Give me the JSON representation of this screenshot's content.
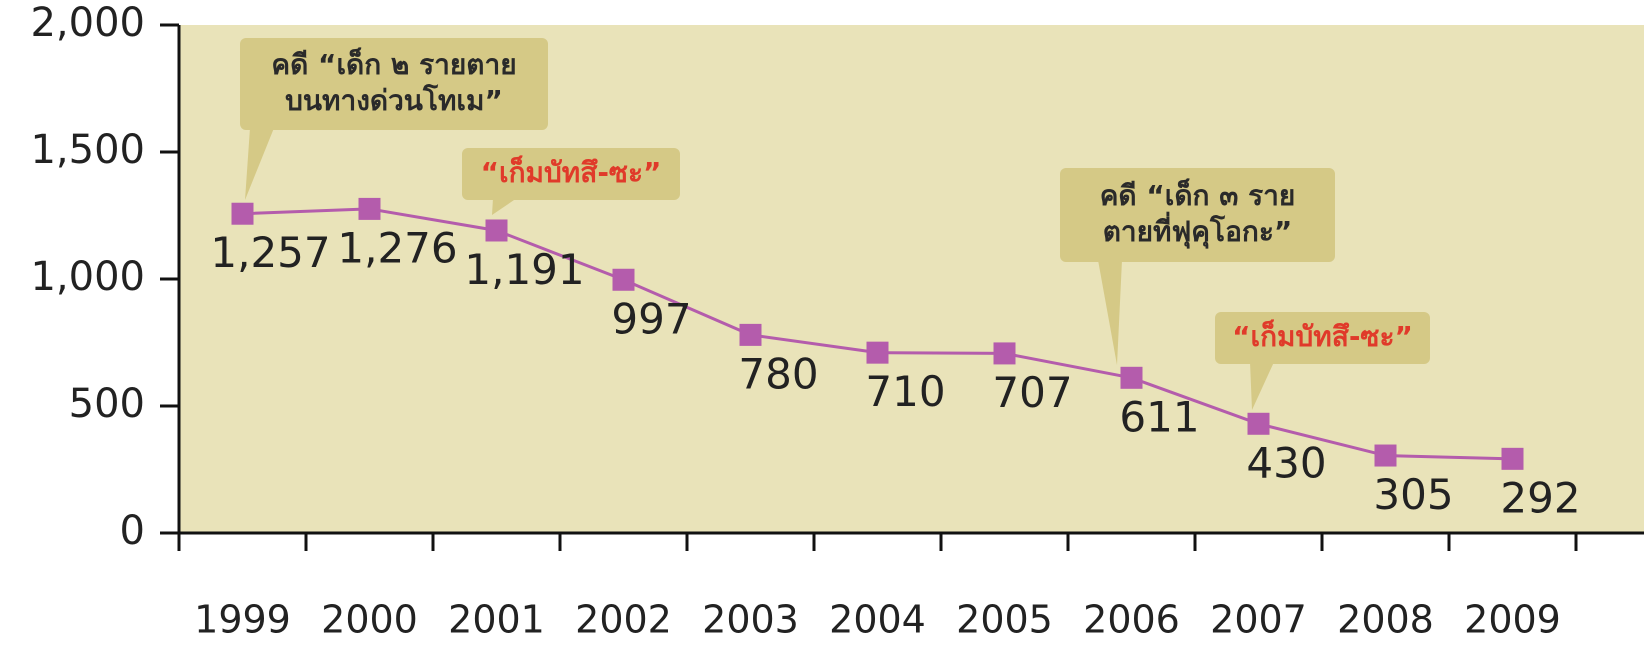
{
  "chart_data": {
    "type": "line",
    "categories": [
      "1999",
      "2000",
      "2001",
      "2002",
      "2003",
      "2004",
      "2005",
      "2006",
      "2007",
      "2008",
      "2009"
    ],
    "series": [
      {
        "color": "#b45cac",
        "values": [
          1257,
          1276,
          1191,
          997,
          780,
          710,
          707,
          611,
          430,
          305,
          292
        ],
        "value_labels": [
          "1,257",
          "1,276",
          "1,191",
          "997",
          "780",
          "710",
          "707",
          "611",
          "430",
          "305",
          "292"
        ]
      }
    ],
    "ylim": [
      0,
      2000
    ],
    "yticks": [
      0,
      500,
      {
        "value": 1000,
        "label": "1,000"
      },
      {
        "value": 1500,
        "label": "1,500"
      },
      {
        "value": 2000,
        "label": "2,000"
      }
    ],
    "annotations": [
      {
        "lines": [
          "คดี “เด็ก ๒ รายตาย",
          "บนทางด่วนโทเม”"
        ],
        "color": "#2a2a2a"
      },
      {
        "lines": [
          "“เก็มบัทสึ-ซะ”"
        ],
        "color": "#e03a2a"
      },
      {
        "lines": [
          "คดี “เด็ก ๓ ราย",
          "ตายที่ฟุคุโอกะ”"
        ],
        "color": "#2a2a2a"
      },
      {
        "lines": [
          "“เก็มบัทสึ-ซะ”"
        ],
        "color": "#e03a2a"
      }
    ]
  }
}
